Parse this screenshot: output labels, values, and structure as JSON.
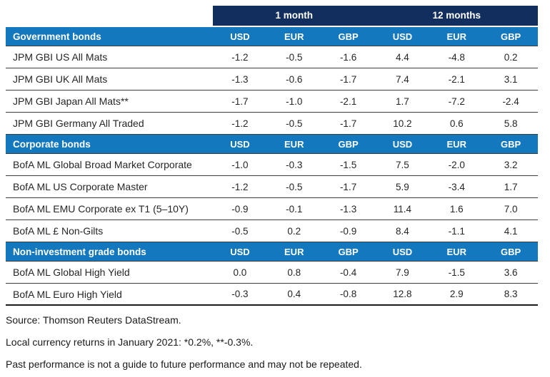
{
  "colors": {
    "header_navy": "#112E5E",
    "band_blue": "#1478BE",
    "row_line": "#3C3C3C",
    "text": "#262626"
  },
  "header": {
    "period_1": "1 month",
    "period_2": "12 months"
  },
  "currencies": [
    "USD",
    "EUR",
    "GBP",
    "USD",
    "EUR",
    "GBP"
  ],
  "sections": [
    {
      "title": "Government bonds",
      "rows": [
        {
          "label": "JPM GBI US All Mats",
          "values": [
            "-1.2",
            "-0.5",
            "-1.6",
            "4.4",
            "-4.8",
            "0.2"
          ]
        },
        {
          "label": "JPM GBI UK All Mats",
          "values": [
            "-1.3",
            "-0.6",
            "-1.7",
            "7.4",
            "-2.1",
            "3.1"
          ]
        },
        {
          "label": "JPM GBI Japan All Mats**",
          "values": [
            "-1.7",
            "-1.0",
            "-2.1",
            "1.7",
            "-7.2",
            "-2.4"
          ]
        },
        {
          "label": "JPM GBI Germany All Traded",
          "values": [
            "-1.2",
            "-0.5",
            "-1.7",
            "10.2",
            "0.6",
            "5.8"
          ]
        }
      ]
    },
    {
      "title": "Corporate bonds",
      "rows": [
        {
          "label": "BofA ML Global Broad Market Corporate",
          "values": [
            "-1.0",
            "-0.3",
            "-1.5",
            "7.5",
            "-2.0",
            "3.2"
          ]
        },
        {
          "label": "BofA ML US Corporate Master",
          "values": [
            "-1.2",
            "-0.5",
            "-1.7",
            "5.9",
            "-3.4",
            "1.7"
          ]
        },
        {
          "label": "BofA ML EMU Corporate ex T1 (5–10Y)",
          "values": [
            "-0.9",
            "-0.1",
            "-1.3",
            "11.4",
            "1.6",
            "7.0"
          ]
        },
        {
          "label": "BofA ML £ Non-Gilts",
          "values": [
            "-0.5",
            "0.2",
            "-0.9",
            "8.4",
            "-1.1",
            "4.1"
          ]
        }
      ]
    },
    {
      "title": "Non-investment grade bonds",
      "rows": [
        {
          "label": "BofA ML Global High Yield",
          "values": [
            "0.0",
            "0.8",
            "-0.4",
            "7.9",
            "-1.5",
            "3.6"
          ]
        },
        {
          "label": "BofA ML Euro High Yield",
          "values": [
            "-0.3",
            "0.4",
            "-0.8",
            "12.8",
            "2.9",
            "8.3"
          ]
        }
      ]
    }
  ],
  "footnotes": [
    "Source: Thomson Reuters DataStream.",
    "Local currency returns in January 2021: *0.2%, **-0.3%.",
    "Past performance is not a guide to future performance and may not be repeated."
  ],
  "chart_data": {
    "type": "table",
    "title": "",
    "column_groups": [
      {
        "label": "1 month",
        "span": 3
      },
      {
        "label": "12 months",
        "span": 3
      }
    ],
    "columns": [
      "USD",
      "EUR",
      "GBP",
      "USD",
      "EUR",
      "GBP"
    ],
    "sections": [
      {
        "name": "Government bonds",
        "rows": [
          {
            "label": "JPM GBI US All Mats",
            "values": [
              -1.2,
              -0.5,
              -1.6,
              4.4,
              -4.8,
              0.2
            ]
          },
          {
            "label": "JPM GBI UK All Mats",
            "values": [
              -1.3,
              -0.6,
              -1.7,
              7.4,
              -2.1,
              3.1
            ]
          },
          {
            "label": "JPM GBI Japan All Mats**",
            "values": [
              -1.7,
              -1.0,
              -2.1,
              1.7,
              -7.2,
              -2.4
            ]
          },
          {
            "label": "JPM GBI Germany All Traded",
            "values": [
              -1.2,
              -0.5,
              -1.7,
              10.2,
              0.6,
              5.8
            ]
          }
        ]
      },
      {
        "name": "Corporate bonds",
        "rows": [
          {
            "label": "BofA ML Global Broad Market Corporate",
            "values": [
              -1.0,
              -0.3,
              -1.5,
              7.5,
              -2.0,
              3.2
            ]
          },
          {
            "label": "BofA ML US Corporate Master",
            "values": [
              -1.2,
              -0.5,
              -1.7,
              5.9,
              -3.4,
              1.7
            ]
          },
          {
            "label": "BofA ML EMU Corporate ex T1 (5–10Y)",
            "values": [
              -0.9,
              -0.1,
              -1.3,
              11.4,
              1.6,
              7.0
            ]
          },
          {
            "label": "BofA ML £ Non-Gilts",
            "values": [
              -0.5,
              0.2,
              -0.9,
              8.4,
              -1.1,
              4.1
            ]
          }
        ]
      },
      {
        "name": "Non-investment grade bonds",
        "rows": [
          {
            "label": "BofA ML Global High Yield",
            "values": [
              0.0,
              0.8,
              -0.4,
              7.9,
              -1.5,
              3.6
            ]
          },
          {
            "label": "BofA ML Euro High Yield",
            "values": [
              -0.3,
              0.4,
              -0.8,
              12.8,
              2.9,
              8.3
            ]
          }
        ]
      }
    ],
    "footnotes": [
      "Source: Thomson Reuters DataStream.",
      "Local currency returns in January 2021: *0.2%, **-0.3%.",
      "Past performance is not a guide to future performance and may not be repeated."
    ]
  }
}
